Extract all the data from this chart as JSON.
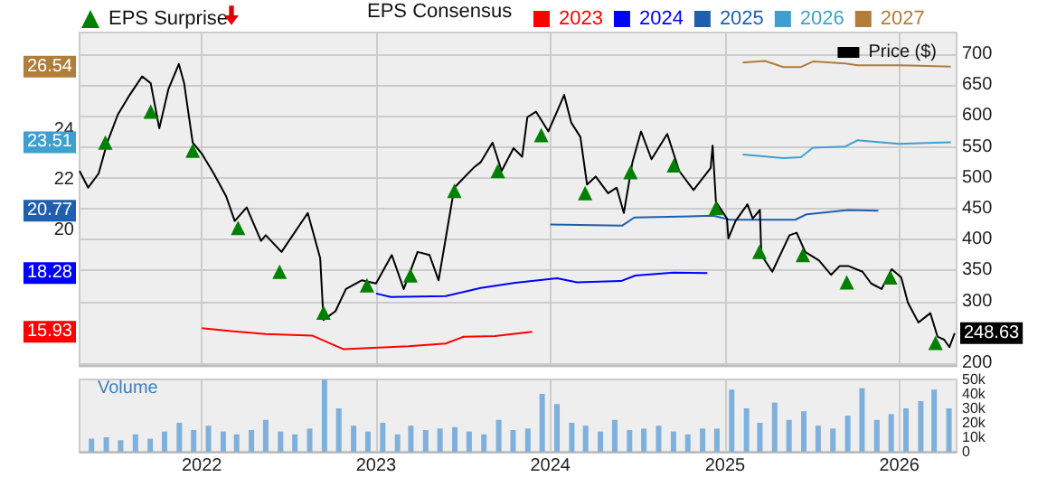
{
  "chart_data": [
    {
      "type": "line",
      "legend_title": "EPS Consensus",
      "grid": true,
      "legend": "top",
      "tick_labels": "y",
      "xlim": [
        "2021-04-20",
        "2026-05-01"
      ],
      "xticks": [
        "2022",
        "2023",
        "2024",
        "2025",
        "2026"
      ],
      "ylim": [
        14.55,
        27.9
      ],
      "yticks": [
        20,
        22,
        24,
        {
          "value": 26.54,
          "label": "26.54"
        },
        {
          "value": 23.51,
          "label": "23.51"
        },
        {
          "value": 20.77,
          "label": "20.77"
        },
        {
          "value": 18.28,
          "label": "18.28"
        },
        {
          "value": 15.93,
          "label": "15.93"
        }
      ],
      "y2lim": [
        195,
        735
      ],
      "y2ticks": [
        200,
        300,
        350,
        400,
        450,
        500,
        550,
        600,
        650,
        700,
        {
          "value": 248.63,
          "label": "248.63"
        }
      ],
      "series": [
        {
          "name": "EPS Surprise",
          "type": "scatter",
          "marker": "triangle",
          "color": "#008000",
          "axis": "y2",
          "x": [
            "2021-06-13",
            "2021-09-16",
            "2021-12-13",
            "2022-03-18",
            "2022-06-13",
            "2022-09-13",
            "2022-12-13",
            "2023-03-14",
            "2023-06-14",
            "2023-09-13",
            "2023-12-13",
            "2024-03-14",
            "2024-06-17",
            "2024-09-16",
            "2024-12-13",
            "2025-03-14",
            "2025-06-13",
            "2025-09-13",
            "2025-12-13",
            "2026-03-18"
          ],
          "values": [
            557,
            607,
            544,
            419,
            348,
            282,
            326,
            342,
            479,
            511,
            569,
            475,
            509,
            520,
            451,
            380,
            375,
            331,
            339,
            233
          ]
        },
        {
          "name": "2023",
          "color": "#ff0000",
          "x": [
            "2022-01-01",
            "2022-03-03",
            "2022-05-15",
            "2022-08-20",
            "2022-10-25",
            "2023-03-10",
            "2023-05-27",
            "2023-07-03",
            "2023-09-07",
            "2023-11-24"
          ],
          "values": [
            16.07,
            15.96,
            15.84,
            15.78,
            15.23,
            15.35,
            15.46,
            15.73,
            15.76,
            15.93
          ]
        },
        {
          "name": "2024",
          "color": "#0000ff",
          "x": [
            "2023-01-01",
            "2023-02-01",
            "2023-05-27",
            "2023-08-08",
            "2023-10-20",
            "2024-01-15",
            "2024-02-26",
            "2024-05-28",
            "2024-06-27",
            "2024-09-15",
            "2024-11-25"
          ],
          "values": [
            17.46,
            17.32,
            17.36,
            17.68,
            17.89,
            18.07,
            17.91,
            17.96,
            18.18,
            18.3,
            18.28
          ]
        },
        {
          "name": "2025",
          "color": "#1f5fb0",
          "x": [
            "2024-01-01",
            "2024-05-31",
            "2024-06-25",
            "2024-12-07",
            "2025-01-12",
            "2025-05-28",
            "2025-06-21",
            "2025-09-16",
            "2025-11-18"
          ],
          "values": [
            20.22,
            20.18,
            20.5,
            20.57,
            20.41,
            20.41,
            20.63,
            20.8,
            20.77
          ]
        },
        {
          "name": "2026",
          "color": "#3fa0d0",
          "x": [
            "2025-02-07",
            "2025-05-03",
            "2025-06-09",
            "2025-07-04",
            "2025-09-10",
            "2025-10-05",
            "2026-01-01",
            "2026-04-19"
          ],
          "values": [
            23.02,
            22.88,
            22.91,
            23.29,
            23.34,
            23.59,
            23.45,
            23.51
          ]
        },
        {
          "name": "2027",
          "color": "#b07d3a",
          "x": [
            "2025-02-07",
            "2025-03-26",
            "2025-05-03",
            "2025-06-09",
            "2025-07-04",
            "2025-09-10",
            "2025-10-05",
            "2026-01-01",
            "2026-04-19"
          ],
          "values": [
            26.7,
            26.76,
            26.52,
            26.52,
            26.74,
            26.66,
            26.59,
            26.59,
            26.54
          ]
        },
        {
          "name": "Price ($)",
          "color": "#000000",
          "axis": "y2",
          "x": [
            "2021-04-20",
            "2021-05-08",
            "2021-05-30",
            "2021-06-17",
            "2021-07-09",
            "2021-08-03",
            "2021-08-29",
            "2021-09-16",
            "2021-10-04",
            "2021-10-23",
            "2021-11-14",
            "2021-11-25",
            "2021-12-13",
            "2022-01-01",
            "2022-01-26",
            "2022-02-21",
            "2022-03-11",
            "2022-04-05",
            "2022-05-05",
            "2022-05-15",
            "2022-06-17",
            "2022-08-11",
            "2022-09-06",
            "2022-09-13",
            "2022-10-08",
            "2022-10-30",
            "2022-12-02",
            "2023-01-01",
            "2023-02-03",
            "2023-02-28",
            "2023-03-29",
            "2023-04-23",
            "2023-05-12",
            "2023-05-30",
            "2023-06-14",
            "2023-07-24",
            "2023-08-08",
            "2023-09-02",
            "2023-09-21",
            "2023-10-16",
            "2023-11-03",
            "2023-11-14",
            "2023-12-02",
            "2023-12-28",
            "2024-01-15",
            "2024-01-30",
            "2024-02-14",
            "2024-03-04",
            "2024-03-18",
            "2024-04-05",
            "2024-05-01",
            "2024-05-19",
            "2024-06-03",
            "2024-06-21",
            "2024-07-09",
            "2024-07-31",
            "2024-09-02",
            "2024-09-27",
            "2024-10-27",
            "2024-12-02",
            "2024-12-06",
            "2024-12-13",
            "2025-01-05",
            "2025-01-08",
            "2025-01-23",
            "2025-02-17",
            "2025-02-28",
            "2025-03-15",
            "2025-03-18",
            "2025-04-10",
            "2025-05-16",
            "2025-05-31",
            "2025-06-18",
            "2025-07-17",
            "2025-08-11",
            "2025-08-29",
            "2025-09-17",
            "2025-10-16",
            "2025-11-03",
            "2025-11-25",
            "2025-12-16",
            "2026-01-05",
            "2026-01-19",
            "2026-02-10",
            "2026-03-07",
            "2026-03-22",
            "2026-04-05",
            "2026-04-16",
            "2026-04-27"
          ],
          "values": [
            511,
            484,
            507,
            557,
            602,
            634,
            664,
            653,
            580,
            643,
            684,
            653,
            557,
            539,
            507,
            470,
            430,
            452,
            398,
            407,
            380,
            443,
            370,
            270,
            284,
            320,
            334,
            329,
            375,
            320,
            380,
            375,
            334,
            416,
            484,
            516,
            525,
            557,
            511,
            548,
            534,
            598,
            607,
            575,
            607,
            634,
            589,
            566,
            489,
            502,
            475,
            484,
            443,
            525,
            575,
            530,
            571,
            511,
            480,
            516,
            552,
            461,
            434,
            402,
            430,
            457,
            434,
            448,
            375,
            348,
            407,
            411,
            380,
            366,
            343,
            357,
            357,
            348,
            329,
            320,
            352,
            339,
            298,
            266,
            281,
            243,
            238,
            226,
            248.63
          ]
        }
      ]
    },
    {
      "type": "bar",
      "title": "Volume",
      "grid": "x",
      "legend": false,
      "xlim": [
        "2021-04-20",
        "2026-05-01"
      ],
      "xticks": [
        "2022",
        "2023",
        "2024",
        "2025",
        "2026"
      ],
      "y2lim": [
        0,
        50000
      ],
      "y2ticks": [
        0,
        {
          "value": 10000,
          "label": "10k"
        },
        {
          "value": 20000,
          "label": "20k"
        },
        {
          "value": 30000,
          "label": "30k"
        },
        {
          "value": 40000,
          "label": "40k"
        },
        {
          "value": 50000,
          "label": "50k"
        }
      ],
      "series": [
        {
          "color": "#7fb0dc",
          "axis": "y2",
          "x": [
            "2021-05-15",
            "2021-06-15",
            "2021-07-15",
            "2021-08-15",
            "2021-09-15",
            "2021-10-15",
            "2021-11-15",
            "2021-12-15",
            "2022-01-15",
            "2022-02-15",
            "2022-03-15",
            "2022-04-15",
            "2022-05-15",
            "2022-06-15",
            "2022-07-15",
            "2022-08-15",
            "2022-09-15",
            "2022-10-15",
            "2022-11-15",
            "2022-12-15",
            "2023-01-15",
            "2023-02-15",
            "2023-03-15",
            "2023-04-15",
            "2023-05-15",
            "2023-06-15",
            "2023-07-15",
            "2023-08-15",
            "2023-09-15",
            "2023-10-15",
            "2023-11-15",
            "2023-12-15",
            "2024-01-15",
            "2024-02-15",
            "2024-03-15",
            "2024-04-15",
            "2024-05-15",
            "2024-06-15",
            "2024-07-15",
            "2024-08-15",
            "2024-09-15",
            "2024-10-15",
            "2024-11-15",
            "2024-12-15",
            "2025-01-15",
            "2025-02-15",
            "2025-03-15",
            "2025-04-15",
            "2025-05-15",
            "2025-06-15",
            "2025-07-15",
            "2025-08-15",
            "2025-09-15",
            "2025-10-15",
            "2025-11-15",
            "2025-12-15",
            "2026-01-15",
            "2026-02-15",
            "2026-03-15",
            "2026-04-15"
          ],
          "values": [
            9000,
            10000,
            8000,
            12000,
            9000,
            14000,
            20000,
            15000,
            18000,
            14000,
            12000,
            15000,
            22000,
            14000,
            12000,
            16000,
            50000,
            30000,
            18000,
            14000,
            20000,
            12000,
            18000,
            15000,
            16000,
            17000,
            14000,
            12000,
            22000,
            15000,
            16000,
            40000,
            33000,
            20000,
            18000,
            14000,
            22000,
            15000,
            16000,
            18000,
            14000,
            12000,
            16000,
            16000,
            43000,
            30000,
            20000,
            34000,
            22000,
            28000,
            18000,
            16000,
            25000,
            44000,
            22000,
            26000,
            30000,
            35000,
            43000,
            30000
          ]
        }
      ]
    }
  ]
}
